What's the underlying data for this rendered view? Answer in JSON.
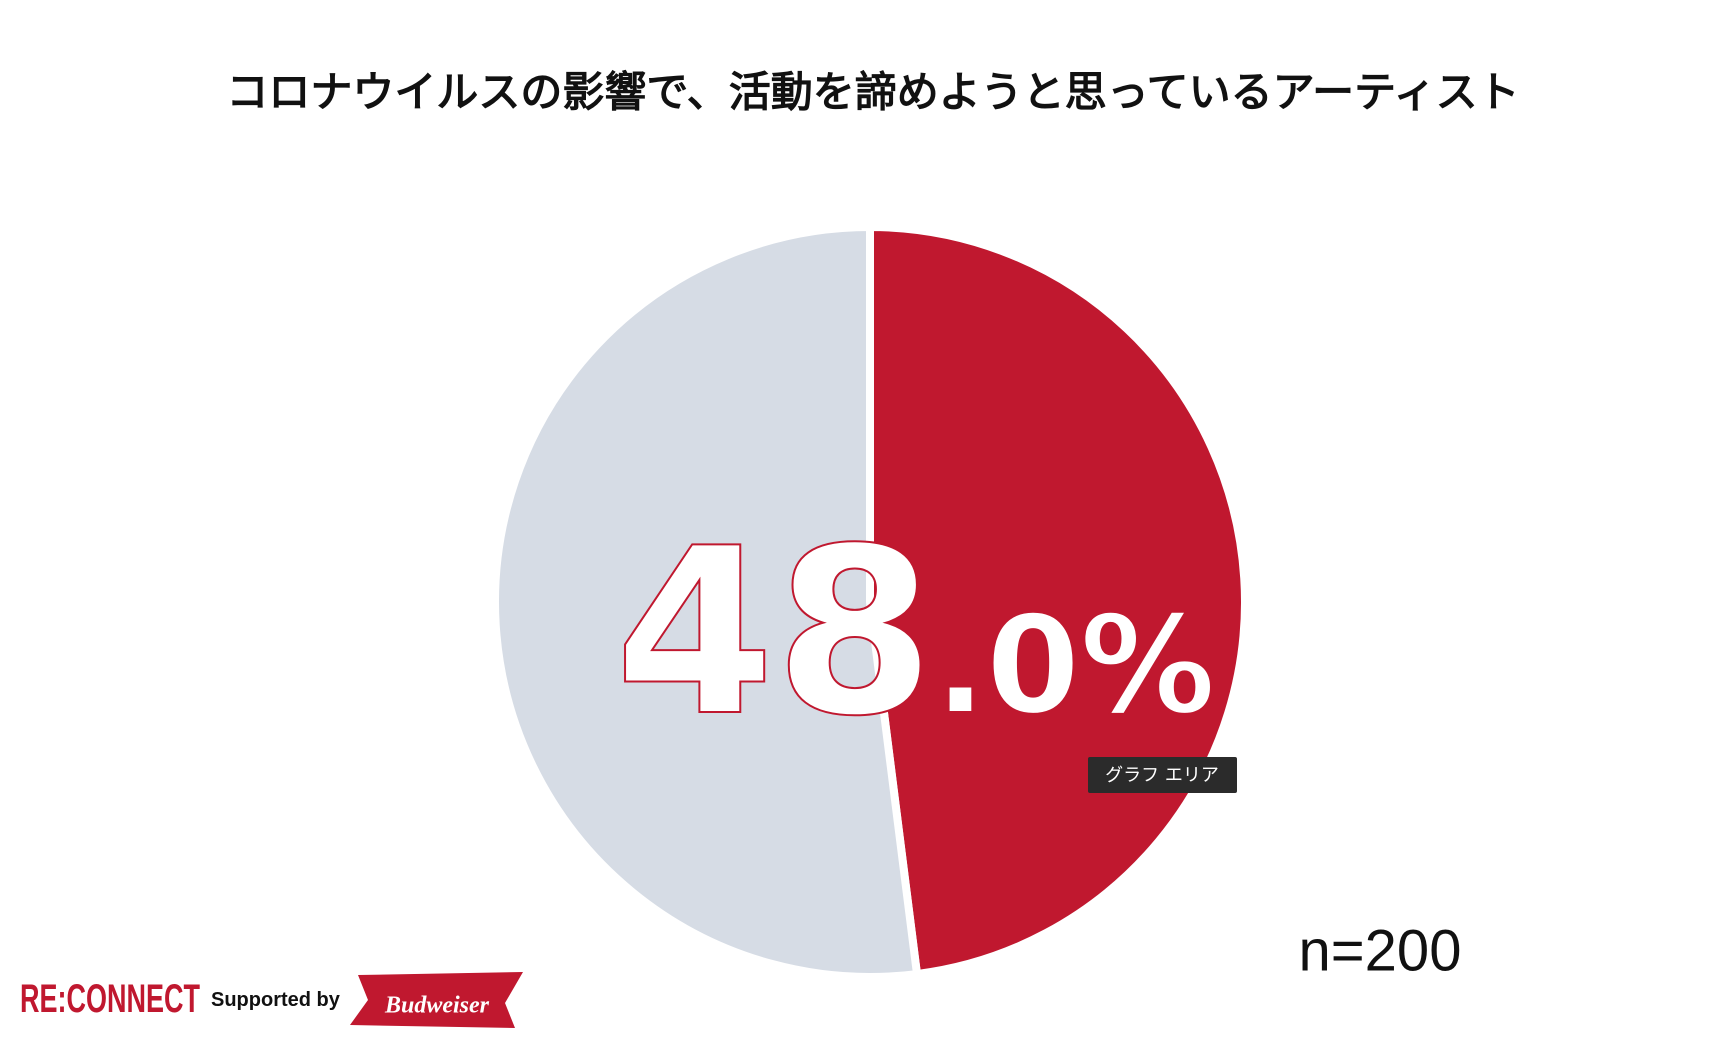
{
  "chart_data": {
    "type": "pie",
    "title": "コロナウイルスの影響で、活動を諦めようと思っているアーティスト",
    "values": [
      48.0,
      52.0
    ],
    "value_labels": [
      "48.0%",
      null
    ],
    "colors": [
      "#c0182f",
      "#d6dce5"
    ],
    "annotation": "n=200"
  },
  "tooltip": "グラフ エリア",
  "footer": {
    "brand": "RE:CONNECT",
    "supported": "Supported by",
    "sponsor": "Budweiser"
  }
}
